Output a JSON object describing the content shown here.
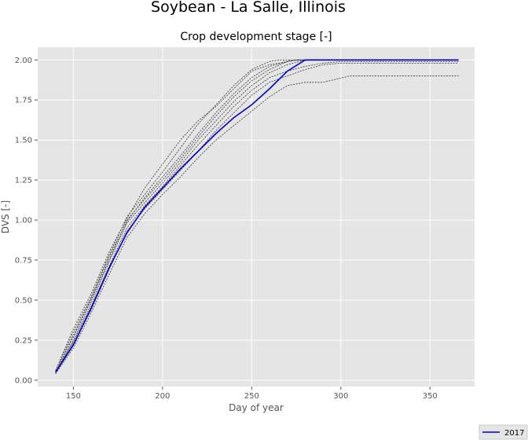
{
  "chart_data": {
    "type": "line",
    "suptitle": "Soybean - La Salle, Illinois",
    "title": "Crop development stage [-]",
    "xlabel": "Day of year",
    "ylabel": "DVS [-]",
    "xlim": [
      130,
      375
    ],
    "ylim": [
      -0.04,
      2.08
    ],
    "xticks": [
      150,
      200,
      250,
      300,
      350
    ],
    "yticks": [
      0.0,
      0.25,
      0.5,
      0.75,
      1.0,
      1.25,
      1.5,
      1.75,
      2.0
    ],
    "ytick_labels": [
      "0.00",
      "0.25",
      "0.50",
      "0.75",
      "1.00",
      "1.25",
      "1.50",
      "1.75",
      "2.00"
    ],
    "grid": true,
    "background": "#e5e5e5",
    "legend_position": "bottom-right",
    "highlight": {
      "name": "2017",
      "color": "#0000cc",
      "x": [
        140,
        150,
        160,
        170,
        180,
        190,
        200,
        210,
        220,
        230,
        240,
        250,
        260,
        270,
        280,
        290,
        300,
        366
      ],
      "values": [
        0.05,
        0.22,
        0.45,
        0.7,
        0.92,
        1.08,
        1.2,
        1.32,
        1.43,
        1.54,
        1.64,
        1.72,
        1.82,
        1.93,
        2.0,
        2.0,
        2.0,
        2.0
      ]
    },
    "series": [
      {
        "color": "#333333",
        "x": [
          140,
          150,
          160,
          170,
          180,
          190,
          200,
          210,
          220,
          230,
          240,
          250,
          260,
          265,
          366
        ],
        "values": [
          0.06,
          0.3,
          0.52,
          0.78,
          1.02,
          1.16,
          1.3,
          1.45,
          1.6,
          1.72,
          1.84,
          1.94,
          1.99,
          2.0,
          2.0
        ]
      },
      {
        "color": "#333333",
        "x": [
          140,
          150,
          160,
          170,
          180,
          190,
          200,
          210,
          220,
          230,
          240,
          250,
          260,
          270,
          275,
          366
        ],
        "values": [
          0.05,
          0.27,
          0.5,
          0.75,
          1.0,
          1.13,
          1.25,
          1.38,
          1.52,
          1.65,
          1.77,
          1.87,
          1.94,
          1.99,
          2.0,
          2.0
        ]
      },
      {
        "color": "#333333",
        "x": [
          140,
          150,
          160,
          170,
          180,
          190,
          200,
          210,
          220,
          230,
          240,
          250,
          260,
          270,
          280,
          366
        ],
        "values": [
          0.04,
          0.25,
          0.48,
          0.74,
          0.98,
          1.11,
          1.23,
          1.36,
          1.5,
          1.62,
          1.74,
          1.84,
          1.92,
          1.97,
          2.0,
          2.0
        ]
      },
      {
        "color": "#333333",
        "x": [
          140,
          150,
          160,
          170,
          180,
          190,
          200,
          210,
          220,
          230,
          240,
          250,
          260,
          270,
          280,
          290,
          300,
          366
        ],
        "values": [
          0.05,
          0.24,
          0.46,
          0.71,
          0.95,
          1.09,
          1.21,
          1.34,
          1.47,
          1.59,
          1.71,
          1.81,
          1.89,
          1.93,
          1.96,
          1.98,
          1.99,
          1.99
        ]
      },
      {
        "color": "#333333",
        "x": [
          140,
          150,
          160,
          170,
          180,
          190,
          200,
          210,
          220,
          230,
          240,
          250,
          260,
          270,
          280,
          290,
          300,
          366
        ],
        "values": [
          0.04,
          0.23,
          0.44,
          0.69,
          0.93,
          1.07,
          1.19,
          1.31,
          1.43,
          1.56,
          1.67,
          1.78,
          1.86,
          1.9,
          1.94,
          1.97,
          1.98,
          1.98
        ]
      },
      {
        "color": "#333333",
        "x": [
          140,
          150,
          160,
          170,
          180,
          190,
          200,
          210,
          220,
          230,
          240,
          250,
          260,
          270,
          280,
          290,
          305,
          366
        ],
        "values": [
          0.04,
          0.2,
          0.42,
          0.66,
          0.89,
          1.04,
          1.16,
          1.27,
          1.39,
          1.5,
          1.59,
          1.68,
          1.77,
          1.84,
          1.86,
          1.86,
          1.9,
          1.9
        ]
      },
      {
        "color": "#333333",
        "x": [
          140,
          150,
          160,
          170,
          180,
          190,
          200,
          210,
          220,
          230,
          240,
          250,
          260,
          270,
          275,
          366
        ],
        "values": [
          0.06,
          0.32,
          0.54,
          0.8,
          1.01,
          1.2,
          1.35,
          1.5,
          1.62,
          1.71,
          1.82,
          1.93,
          1.97,
          1.99,
          2.0,
          2.0
        ]
      },
      {
        "color": "#333333",
        "x": [
          140,
          150,
          160,
          170,
          180,
          190,
          200,
          210,
          220,
          230,
          240,
          250,
          260,
          270,
          275,
          366
        ],
        "values": [
          0.05,
          0.28,
          0.51,
          0.77,
          0.99,
          1.14,
          1.27,
          1.4,
          1.54,
          1.67,
          1.79,
          1.89,
          1.96,
          1.99,
          2.0,
          2.0
        ]
      }
    ]
  }
}
